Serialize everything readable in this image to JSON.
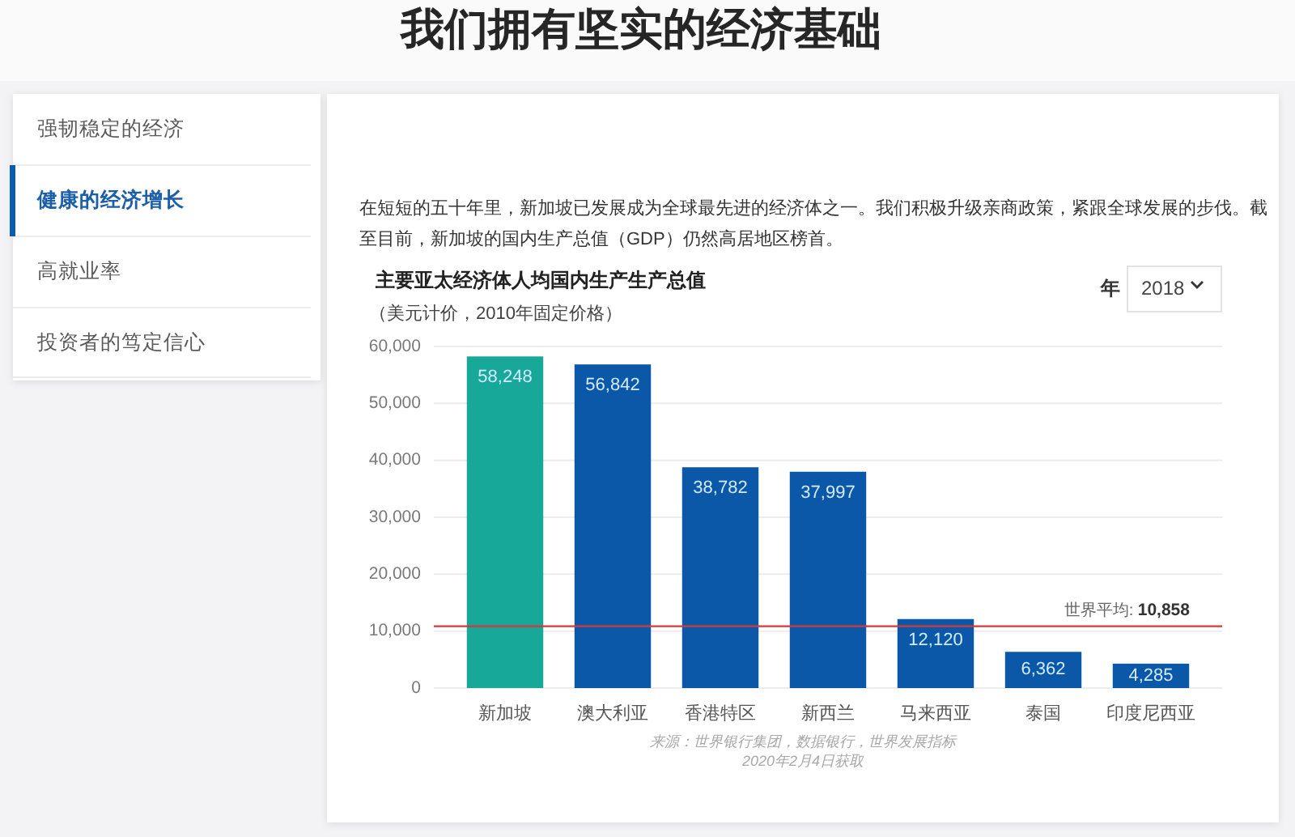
{
  "chart_data": {
    "type": "bar",
    "title": "主要亚太经济体人均国内生产生产总值",
    "subtitle": "（美元计价，2010年固定价格）",
    "categories": [
      "新加坡",
      "澳大利亚",
      "香港特区",
      "新西兰",
      "马来西亚",
      "泰国",
      "印度尼西亚"
    ],
    "values": [
      58248,
      56842,
      38782,
      37997,
      12120,
      6362,
      4285
    ],
    "value_labels": [
      "58,248",
      "56,842",
      "38,782",
      "37,997",
      "12,120",
      "6,362",
      "4,285"
    ],
    "colors": [
      "#17a89a",
      "#0b58a8",
      "#0b58a8",
      "#0b58a8",
      "#0b58a8",
      "#0b58a8",
      "#0b58a8"
    ],
    "ylim": [
      0,
      60000
    ],
    "yticks": [
      0,
      {
        "value": 10000,
        "label": "10,000"
      },
      {
        "value": 20000,
        "label": "20,000"
      },
      {
        "value": 30000,
        "label": "30,000"
      },
      {
        "value": 40000,
        "label": "40,000"
      },
      {
        "value": 50000,
        "label": "50,000"
      },
      {
        "value": 60000,
        "label": "60,000"
      }
    ],
    "grid": "y",
    "ref_lines": [
      {
        "axis": "y",
        "value": 10858,
        "label": "世界平均: 10,858",
        "color": "#d8383a"
      }
    ],
    "annotations": [
      "我们拥有坚实的经济基础",
      "强韧稳定的经济",
      "健康的经济增长",
      "高就业率",
      "投资者的笃定信心",
      "在短短的五十年里，新加坡已发展成为全球最先进的经济体之一。我们积极升级亲商政策，紧跟全球发展的步伐。截至目前，新加坡的国内生产总值（GDP）仍然高居地区榜首。",
      "年",
      "2018",
      "来源：世界银行集团，数据银行，世界发展指标",
      "2020年2月4日获取"
    ]
  }
}
